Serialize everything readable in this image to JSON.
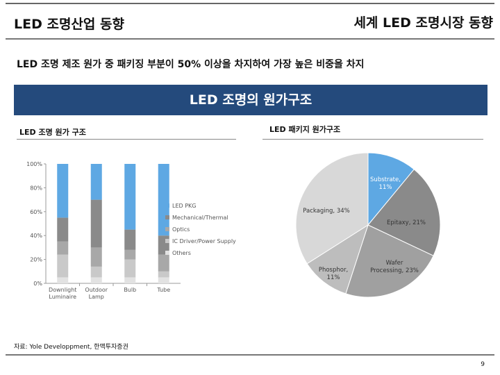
{
  "header": {
    "left_title": "LED 조명산업 동향",
    "right_title": "세계 LED 조명시장 동향"
  },
  "summary": "LED 조명 제조 원가 중 패키징 부분이 50% 이상을 차지하여 가장 높은 비중을 차지",
  "banner": "LED 조명의 원가구조",
  "left_panel_title": "LED 조명 원가 구조",
  "right_panel_title": "LED 패키지 원가구조",
  "source": "자료: Yole Developpment, 한맥투자증권",
  "page_number": "9",
  "colors": {
    "led_pkg": "#5ea8e3",
    "mechanical": "#8a8a8a",
    "optics": "#a8a8a8",
    "ic_driver": "#c9c9c9",
    "others": "#e2e2e2",
    "banner": "#244a7c"
  },
  "chart_data": [
    {
      "type": "bar",
      "stacked": true,
      "percent": true,
      "categories": [
        "Downlight\nLuminaire",
        "Outdoor\nLamp",
        "Bulb",
        "Tube"
      ],
      "ylim": [
        0,
        100
      ],
      "yticks": [
        "0%",
        "20%",
        "40%",
        "60%",
        "80%",
        "100%"
      ],
      "series": [
        {
          "name": "Others",
          "values": [
            5,
            5,
            5,
            5
          ]
        },
        {
          "name": "IC Driver/Power Supply",
          "values": [
            19,
            9,
            15,
            5
          ]
        },
        {
          "name": "Optics",
          "values": [
            11,
            16,
            8,
            14
          ]
        },
        {
          "name": "Mechanical/Thermal",
          "values": [
            20,
            40,
            17,
            16
          ]
        },
        {
          "name": "LED PKG",
          "values": [
            45,
            30,
            55,
            60
          ]
        }
      ],
      "legend_order": [
        "LED PKG",
        "Mechanical/Thermal",
        "Optics",
        "IC Driver/Power Supply",
        "Others"
      ]
    },
    {
      "type": "pie",
      "slices": [
        {
          "label": "Substrate,",
          "value_label": "11%",
          "value": 11,
          "color": "#5ea8e3"
        },
        {
          "label": "Epitaxy, 21%",
          "value_label": "",
          "value": 21,
          "color": "#8a8a8a"
        },
        {
          "label": "Wafer Processing, 23%",
          "value_label": "",
          "value": 23,
          "color": "#a0a0a0"
        },
        {
          "label": "Phosphor,",
          "value_label": "11%",
          "value": 11,
          "color": "#bdbdbd"
        },
        {
          "label": "Packaging, 34%",
          "value_label": "",
          "value": 34,
          "color": "#d8d8d8"
        }
      ]
    }
  ]
}
